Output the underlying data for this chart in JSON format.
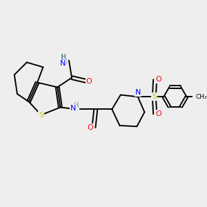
{
  "bg_color": "#eeeeee",
  "atom_colors": {
    "C": "#000000",
    "H": "#4a9090",
    "N": "#0000ff",
    "O": "#ff0000",
    "S": "#cccc00"
  },
  "bond_color": "#000000",
  "bond_width": 1.4,
  "fig_width": 3.0,
  "fig_height": 3.0,
  "dpi": 100,
  "xlim": [
    0,
    10
  ],
  "ylim": [
    0,
    10
  ]
}
